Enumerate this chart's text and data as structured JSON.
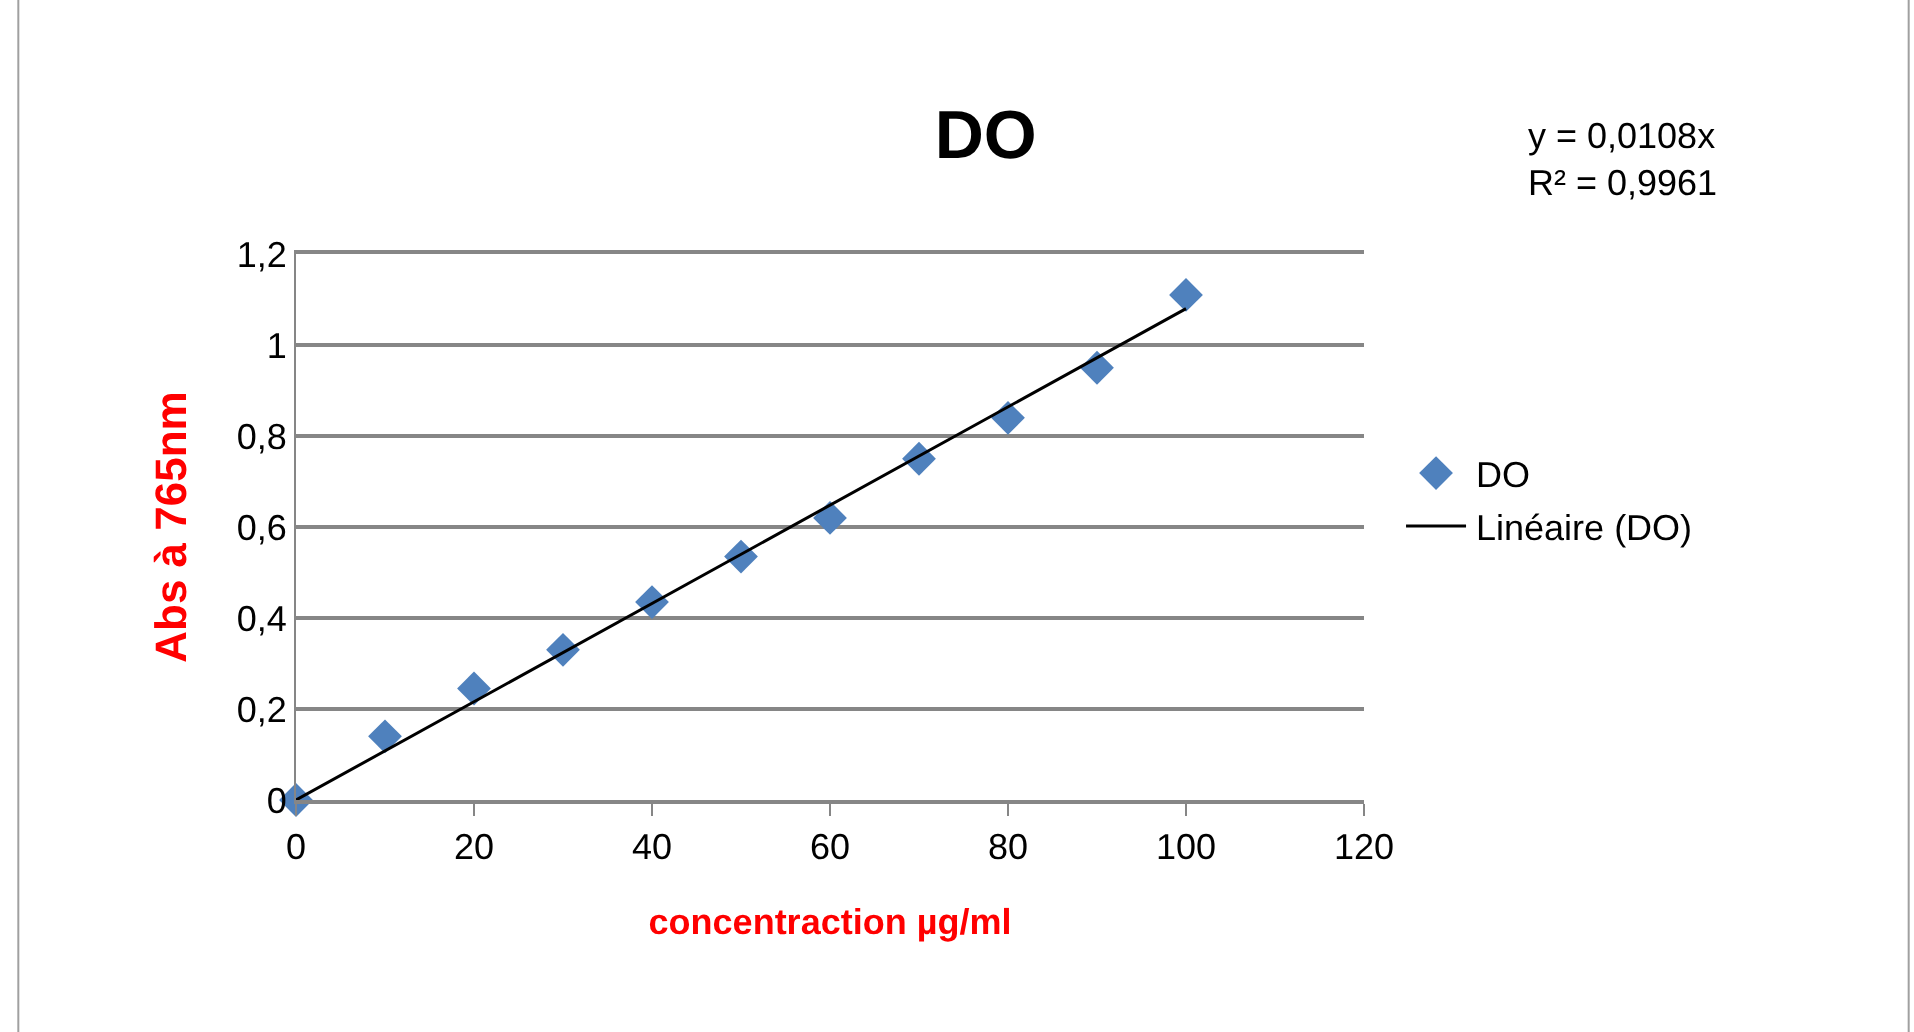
{
  "chart_data": {
    "type": "scatter",
    "title": "DO",
    "xlabel": "concentraction µg/ml",
    "ylabel": "Abs à 765nm",
    "annotations": [
      "y = 0,0108x\nR² = 0,9961"
    ],
    "x": [
      0,
      10,
      20,
      30,
      40,
      50,
      60,
      70,
      80,
      90,
      100
    ],
    "series": [
      {
        "name": "DO",
        "marker": "diamond",
        "color": "#4f81bd",
        "values": [
          0,
          0.14,
          0.245,
          0.33,
          0.435,
          0.535,
          0.62,
          0.75,
          0.84,
          0.95,
          1.11
        ]
      },
      {
        "name": "Linéaire (DO)",
        "type": "line",
        "marker": "none",
        "line_style": "solid",
        "color": "#000000",
        "x": [
          0,
          100
        ],
        "values": [
          0,
          1.08
        ]
      }
    ],
    "xlim": [
      0,
      120
    ],
    "xticks": [
      0,
      20,
      40,
      60,
      80,
      100,
      120
    ],
    "ylim": [
      0,
      1.2
    ],
    "yticks": [
      0,
      {
        "value": 0.2,
        "label": "0,2"
      },
      {
        "value": 0.4,
        "label": "0,4"
      },
      {
        "value": 0.6,
        "label": "0,6"
      },
      {
        "value": 0.8,
        "label": "0,8"
      },
      1,
      {
        "value": 1.2,
        "label": "1,2"
      }
    ],
    "grid": "y",
    "legend": "right"
  }
}
